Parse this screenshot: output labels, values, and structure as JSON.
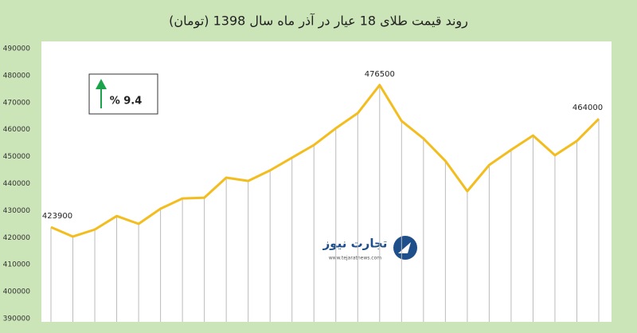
{
  "chart_data": {
    "type": "line",
    "title": "روند قیمت طلای 18 عیار در آذر ماه سال 1398 (تومان)",
    "categories": [
      null,
      null,
      null,
      null,
      null,
      null,
      null,
      null,
      null,
      null,
      null,
      null,
      null,
      null,
      null,
      null,
      null,
      null,
      null,
      null,
      null,
      null,
      null,
      null,
      null,
      null
    ],
    "series": [
      {
        "name": "قیمت طلای 18 عیار",
        "color": "#f2bd1d",
        "values": [
          423900,
          420400,
          423000,
          428000,
          425100,
          430700,
          434500,
          434800,
          442200,
          441000,
          444900,
          449600,
          454300,
          460500,
          466100,
          476500,
          463200,
          456700,
          448400,
          437200,
          446900,
          452500,
          457800,
          450500,
          455800,
          464000
        ],
        "value_labels": [
          "423900",
          null,
          null,
          null,
          null,
          null,
          null,
          null,
          null,
          null,
          null,
          null,
          null,
          null,
          null,
          "476500",
          null,
          null,
          null,
          null,
          null,
          null,
          null,
          null,
          null,
          "464000"
        ]
      }
    ],
    "ylim": [
      390000,
      490000
    ],
    "yticks": [
      390000,
      400000,
      410000,
      420000,
      430000,
      440000,
      450000,
      460000,
      470000,
      480000,
      490000
    ],
    "annotation": "% 9.4",
    "annotation_arrow_color": "#1aa34a",
    "watermark": {
      "name": "تجارت نیوز",
      "url": "www.tejaratnews.com"
    }
  }
}
